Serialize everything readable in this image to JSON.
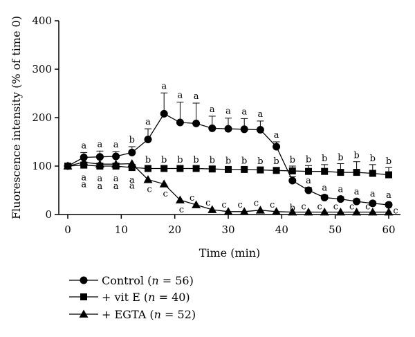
{
  "chart_data": {
    "type": "line",
    "xlabel": "Time (min)",
    "ylabel": "Fluorescence intensity (% of time 0)",
    "xlim": [
      0,
      60
    ],
    "ylim": [
      0,
      400
    ],
    "xticks": [
      "0",
      "10",
      "20",
      "30",
      "40",
      "50",
      "60"
    ],
    "yticks": [
      "0",
      "100",
      "200",
      "300",
      "400"
    ],
    "x": [
      0,
      3,
      6,
      9,
      12,
      15,
      18,
      21,
      24,
      27,
      30,
      33,
      36,
      39,
      42,
      45,
      48,
      51,
      54,
      57,
      60
    ],
    "legend_position": "bottom-left",
    "series": [
      {
        "key": "control",
        "marker": "circle",
        "legend": {
          "name": "Control",
          "n_label": "n",
          "n_text": " = 56)"
        },
        "values": [
          100,
          118,
          119,
          120,
          128,
          155,
          208,
          190,
          188,
          178,
          177,
          176,
          175,
          140,
          70,
          50,
          35,
          32,
          27,
          23,
          20
        ],
        "error": [
          0,
          10,
          12,
          10,
          12,
          22,
          43,
          42,
          42,
          25,
          22,
          22,
          18,
          10,
          8,
          6,
          5,
          5,
          5,
          4,
          4
        ],
        "sig": [
          "",
          "a",
          "a",
          "a",
          "b",
          "a",
          "a",
          "a",
          "a",
          "a",
          "a",
          "a",
          "a",
          "a",
          "a",
          "a",
          "a",
          "a",
          "a",
          "a",
          "a"
        ]
      },
      {
        "key": "vite",
        "marker": "square",
        "legend": {
          "name": "+ vit E",
          "n_label": "n",
          "n_text": " = 40)"
        },
        "values": [
          100,
          102,
          100,
          100,
          97,
          95,
          95,
          95,
          95,
          94,
          93,
          93,
          92,
          91,
          90,
          89,
          89,
          87,
          87,
          85,
          82
        ],
        "error": [
          0,
          6,
          6,
          6,
          6,
          5,
          5,
          5,
          5,
          5,
          5,
          5,
          5,
          6,
          10,
          12,
          14,
          18,
          22,
          18,
          15
        ],
        "sig": [
          "",
          "a",
          "a",
          "a",
          "a",
          "b",
          "b",
          "b",
          "b",
          "b",
          "b",
          "b",
          "b",
          "b",
          "b",
          "b",
          "b",
          "b",
          "b",
          "b",
          "b"
        ]
      },
      {
        "key": "egta",
        "marker": "triangle",
        "legend": {
          "name": "+ EGTA",
          "n_label": "n",
          "n_text": " = 52)"
        },
        "values": [
          100,
          108,
          104,
          104,
          105,
          72,
          63,
          30,
          20,
          10,
          6,
          6,
          9,
          6,
          5,
          5,
          5,
          5,
          5,
          5,
          5
        ],
        "error": [
          0,
          0,
          0,
          0,
          0,
          0,
          0,
          0,
          0,
          0,
          0,
          0,
          0,
          0,
          0,
          0,
          0,
          0,
          0,
          0,
          0
        ],
        "sig": [
          "",
          "a",
          "a",
          "a",
          "a",
          "c",
          "c",
          "c",
          "c",
          "c",
          "c",
          "c",
          "c",
          "c",
          "b",
          "c",
          "c",
          "c",
          "c",
          "c",
          "c"
        ]
      }
    ]
  }
}
